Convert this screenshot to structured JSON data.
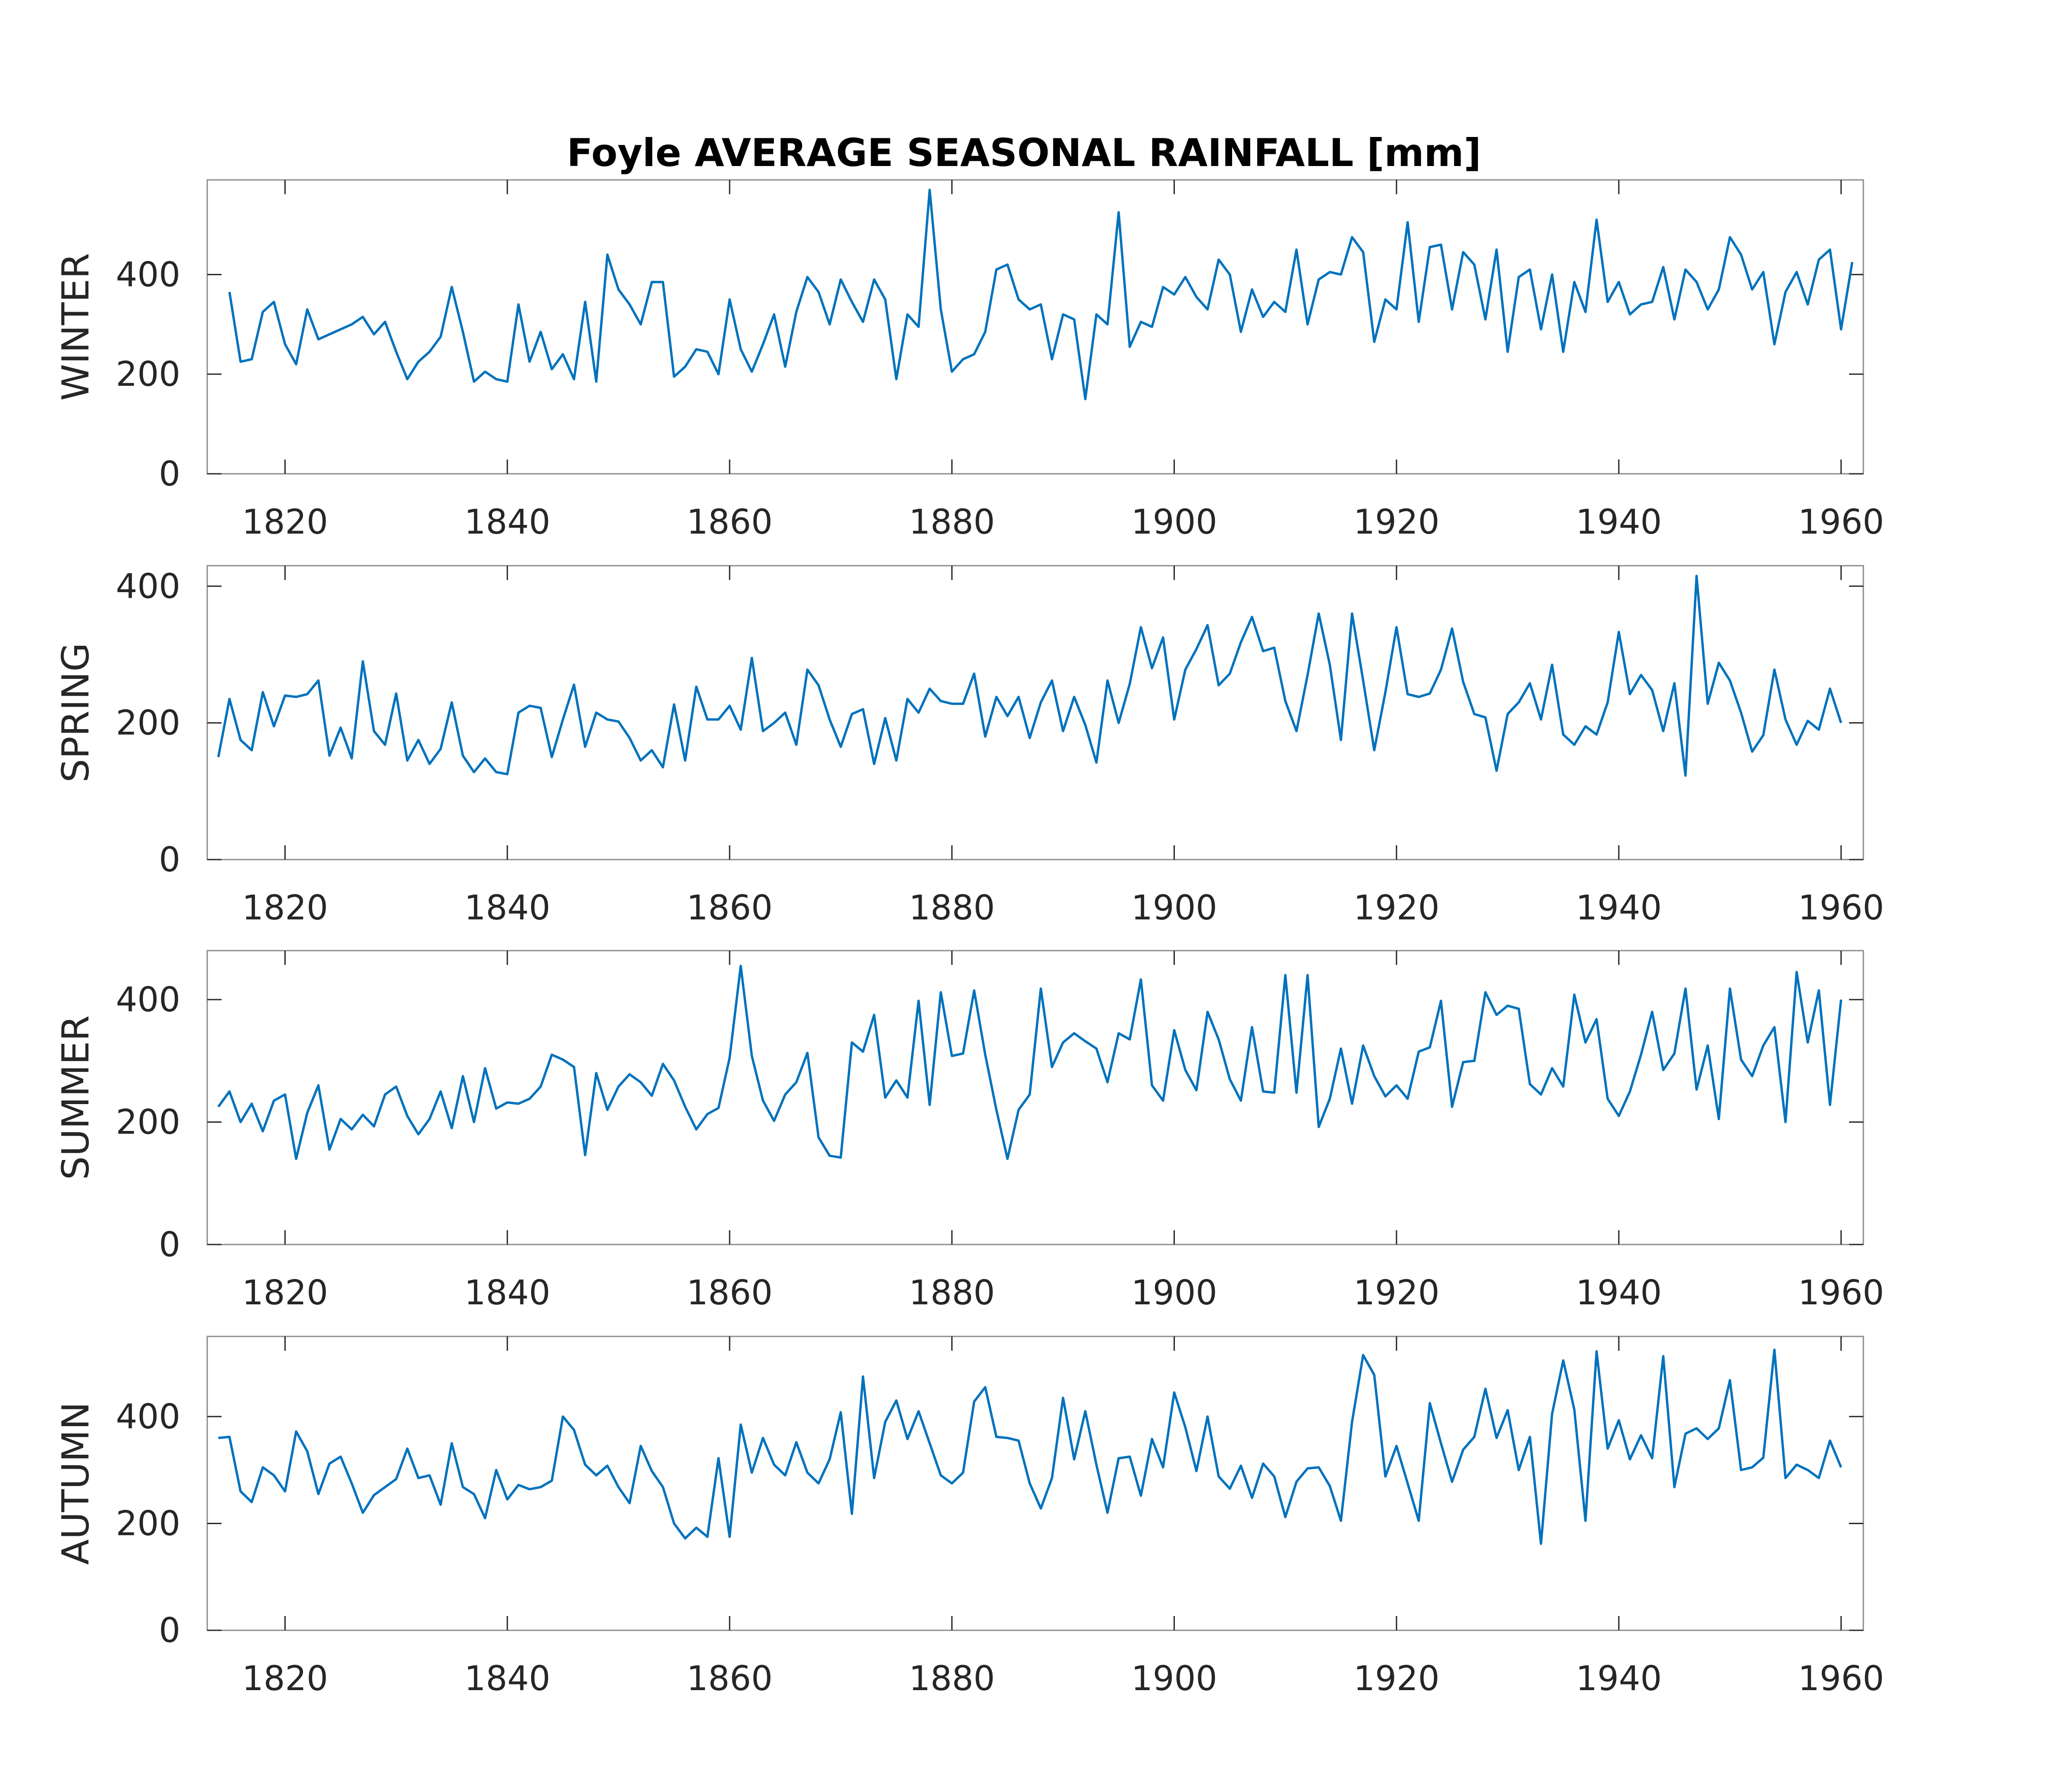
{
  "title": "Foyle AVERAGE SEASONAL RAINFALL [mm]",
  "line_color": "#0072BD",
  "chart_data": [
    {
      "type": "line",
      "ylabel": "WINTER",
      "xlim": [
        1813,
        1962
      ],
      "ylim": [
        0,
        590
      ],
      "xticks": [
        1820,
        1840,
        1860,
        1880,
        1900,
        1920,
        1940,
        1960
      ],
      "yticks": [
        0,
        200,
        400
      ],
      "x_start": 1815,
      "values": [
        365,
        225,
        230,
        325,
        345,
        260,
        220,
        330,
        270,
        280,
        290,
        300,
        315,
        280,
        305,
        245,
        190,
        225,
        245,
        275,
        375,
        285,
        185,
        205,
        190,
        185,
        340,
        225,
        285,
        210,
        240,
        190,
        345,
        185,
        440,
        370,
        340,
        300,
        385,
        385,
        195,
        215,
        250,
        245,
        200,
        350,
        250,
        205,
        260,
        320,
        215,
        325,
        395,
        365,
        300,
        390,
        345,
        305,
        390,
        350,
        190,
        320,
        295,
        570,
        330,
        205,
        230,
        240,
        285,
        410,
        420,
        350,
        330,
        340,
        230,
        320,
        310,
        150,
        320,
        300,
        525,
        255,
        305,
        295,
        375,
        360,
        395,
        355,
        330,
        430,
        400,
        285,
        370,
        315,
        345,
        325,
        450,
        300,
        390,
        405,
        400,
        475,
        445,
        265,
        350,
        330,
        505,
        305,
        455,
        460,
        330,
        445,
        420,
        310,
        450,
        245,
        395,
        410,
        290,
        400,
        245,
        385,
        325,
        510,
        345,
        385,
        320,
        340,
        345,
        415,
        310,
        410,
        385,
        330,
        370,
        475,
        440,
        370,
        405,
        260,
        365,
        405,
        340,
        430,
        450,
        290,
        425
      ]
    },
    {
      "type": "line",
      "ylabel": "SPRING",
      "xlim": [
        1813,
        1962
      ],
      "ylim": [
        0,
        430
      ],
      "xticks": [
        1820,
        1840,
        1860,
        1880,
        1900,
        1920,
        1940,
        1960
      ],
      "yticks": [
        0,
        200,
        400
      ],
      "x_start": 1814,
      "values": [
        150,
        235,
        175,
        160,
        245,
        195,
        240,
        238,
        242,
        262,
        152,
        193,
        148,
        290,
        188,
        168,
        243,
        145,
        175,
        140,
        162,
        230,
        152,
        128,
        148,
        128,
        125,
        215,
        225,
        222,
        150,
        205,
        256,
        165,
        215,
        205,
        202,
        178,
        145,
        160,
        135,
        227,
        145,
        253,
        205,
        205,
        225,
        190,
        295,
        188,
        200,
        215,
        168,
        278,
        255,
        205,
        165,
        213,
        220,
        140,
        207,
        145,
        235,
        215,
        250,
        232,
        228,
        228,
        272,
        180,
        238,
        210,
        238,
        178,
        230,
        262,
        188,
        238,
        197,
        142,
        262,
        200,
        257,
        340,
        280,
        325,
        205,
        278,
        308,
        343,
        255,
        272,
        318,
        355,
        305,
        310,
        232,
        188,
        270,
        360,
        285,
        175,
        360,
        262,
        160,
        245,
        340,
        242,
        238,
        243,
        278,
        338,
        260,
        213,
        208,
        130,
        213,
        230,
        258,
        205,
        285,
        183,
        168,
        195,
        183,
        230,
        333,
        242,
        270,
        248,
        188,
        258,
        123,
        415,
        228,
        288,
        262,
        215,
        158,
        182,
        278,
        205,
        168,
        203,
        190,
        250,
        200
      ]
    },
    {
      "type": "line",
      "ylabel": "SUMMER",
      "xlim": [
        1813,
        1962
      ],
      "ylim": [
        0,
        480
      ],
      "xticks": [
        1820,
        1840,
        1860,
        1880,
        1900,
        1920,
        1940,
        1960
      ],
      "yticks": [
        0,
        200,
        400
      ],
      "x_start": 1814,
      "values": [
        225,
        250,
        200,
        230,
        185,
        235,
        245,
        140,
        215,
        260,
        155,
        205,
        188,
        212,
        193,
        245,
        258,
        210,
        180,
        205,
        250,
        190,
        275,
        200,
        288,
        222,
        232,
        230,
        238,
        258,
        310,
        302,
        290,
        146,
        280,
        220,
        258,
        278,
        265,
        243,
        295,
        268,
        225,
        188,
        213,
        223,
        305,
        455,
        308,
        235,
        202,
        245,
        265,
        313,
        175,
        145,
        142,
        330,
        315,
        375,
        240,
        268,
        240,
        398,
        228,
        412,
        308,
        312,
        415,
        310,
        220,
        140,
        220,
        245,
        418,
        290,
        330,
        345,
        332,
        320,
        265,
        345,
        335,
        433,
        260,
        235,
        350,
        285,
        252,
        380,
        335,
        270,
        235,
        355,
        250,
        248,
        440,
        248,
        440,
        192,
        238,
        320,
        230,
        325,
        275,
        242,
        260,
        238,
        315,
        322,
        398,
        225,
        298,
        300,
        412,
        375,
        390,
        385,
        262,
        245,
        288,
        258,
        408,
        330,
        368,
        238,
        210,
        250,
        310,
        380,
        285,
        312,
        418,
        253,
        325,
        205,
        418,
        302,
        275,
        325,
        355,
        200,
        445,
        330,
        415,
        228,
        400
      ]
    },
    {
      "type": "line",
      "ylabel": "AUTUMN",
      "xlim": [
        1813,
        1962
      ],
      "ylim": [
        0,
        550
      ],
      "xticks": [
        1820,
        1840,
        1860,
        1880,
        1900,
        1920,
        1940,
        1960
      ],
      "yticks": [
        0,
        200,
        400
      ],
      "x_start": 1814,
      "values": [
        360,
        362,
        260,
        240,
        305,
        290,
        260,
        372,
        335,
        255,
        312,
        325,
        275,
        220,
        253,
        268,
        283,
        340,
        285,
        290,
        235,
        350,
        268,
        255,
        210,
        300,
        245,
        272,
        264,
        268,
        280,
        400,
        375,
        310,
        290,
        308,
        268,
        238,
        345,
        298,
        268,
        200,
        172,
        192,
        175,
        322,
        175,
        385,
        295,
        360,
        310,
        290,
        352,
        295,
        275,
        320,
        408,
        218,
        475,
        285,
        390,
        430,
        358,
        410,
        350,
        290,
        275,
        295,
        428,
        455,
        362,
        360,
        355,
        275,
        228,
        285,
        435,
        320,
        410,
        310,
        220,
        322,
        325,
        252,
        358,
        305,
        445,
        380,
        298,
        400,
        288,
        265,
        308,
        248,
        312,
        288,
        212,
        278,
        303,
        305,
        270,
        205,
        390,
        515,
        478,
        288,
        345,
        275,
        205,
        425,
        350,
        278,
        338,
        362,
        452,
        360,
        412,
        300,
        362,
        162,
        405,
        505,
        413,
        205,
        522,
        340,
        393,
        320,
        365,
        322,
        513,
        268,
        368,
        378,
        358,
        378,
        468,
        300,
        305,
        323,
        525,
        285,
        310,
        300,
        285,
        355,
        305
      ]
    }
  ]
}
